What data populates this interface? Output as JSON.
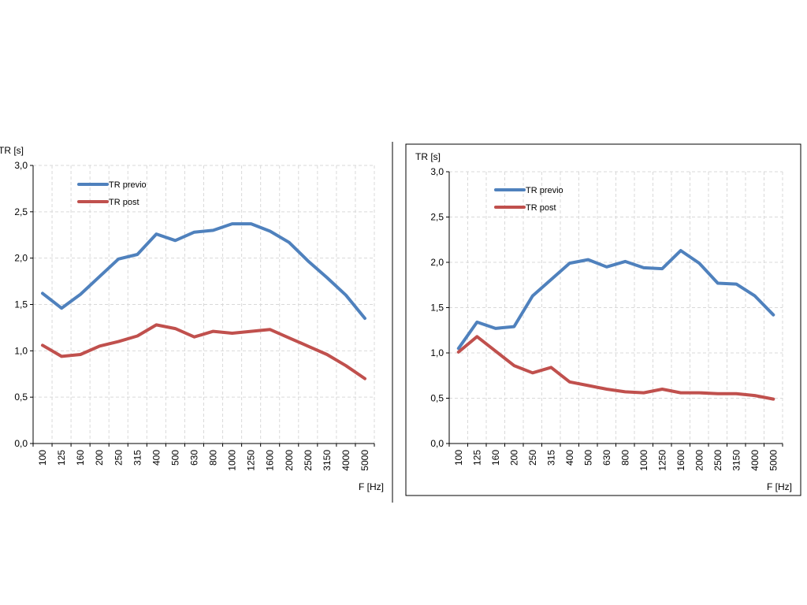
{
  "chart_data": [
    {
      "type": "line",
      "ylabel": "TR [s]",
      "xlabel": "F [Hz]",
      "ylim": [
        0,
        3
      ],
      "yticks": [
        "0,0",
        "0,5",
        "1,0",
        "1,5",
        "2,0",
        "2,5",
        "3,0"
      ],
      "categories": [
        "100",
        "125",
        "160",
        "200",
        "250",
        "315",
        "400",
        "500",
        "630",
        "800",
        "1000",
        "1250",
        "1600",
        "2000",
        "2500",
        "3150",
        "4000",
        "5000"
      ],
      "grid": true,
      "legend_position": "top-left",
      "series": [
        {
          "name": "TR previo",
          "color": "#4f81bd",
          "values": [
            1.62,
            1.46,
            1.61,
            1.8,
            1.99,
            2.04,
            2.26,
            2.19,
            2.28,
            2.3,
            2.37,
            2.37,
            2.29,
            2.17,
            1.97,
            1.79,
            1.6,
            1.35
          ]
        },
        {
          "name": "TR post",
          "color": "#c0504d",
          "values": [
            1.06,
            0.94,
            0.96,
            1.05,
            1.1,
            1.16,
            1.28,
            1.24,
            1.15,
            1.21,
            1.19,
            1.21,
            1.23,
            1.14,
            1.05,
            0.96,
            0.84,
            0.7
          ]
        }
      ]
    },
    {
      "type": "line",
      "ylabel": "TR [s]",
      "xlabel": "F [Hz]",
      "ylim": [
        0,
        3
      ],
      "yticks": [
        "0,0",
        "0,5",
        "1,0",
        "1,5",
        "2,0",
        "2,5",
        "3,0"
      ],
      "categories": [
        "100",
        "125",
        "160",
        "200",
        "250",
        "315",
        "400",
        "500",
        "630",
        "800",
        "1000",
        "1250",
        "1600",
        "2000",
        "2500",
        "3150",
        "4000",
        "5000"
      ],
      "grid": true,
      "legend_position": "top-left",
      "series": [
        {
          "name": "TR previo",
          "color": "#4f81bd",
          "values": [
            1.05,
            1.34,
            1.27,
            1.29,
            1.63,
            1.81,
            1.99,
            2.03,
            1.95,
            2.01,
            1.94,
            1.93,
            2.13,
            1.99,
            1.77,
            1.76,
            1.63,
            1.42
          ]
        },
        {
          "name": "TR post",
          "color": "#c0504d",
          "values": [
            1.01,
            1.18,
            1.02,
            0.86,
            0.78,
            0.84,
            0.68,
            0.64,
            0.6,
            0.57,
            0.56,
            0.6,
            0.56,
            0.56,
            0.55,
            0.55,
            0.53,
            0.49
          ]
        }
      ]
    }
  ]
}
